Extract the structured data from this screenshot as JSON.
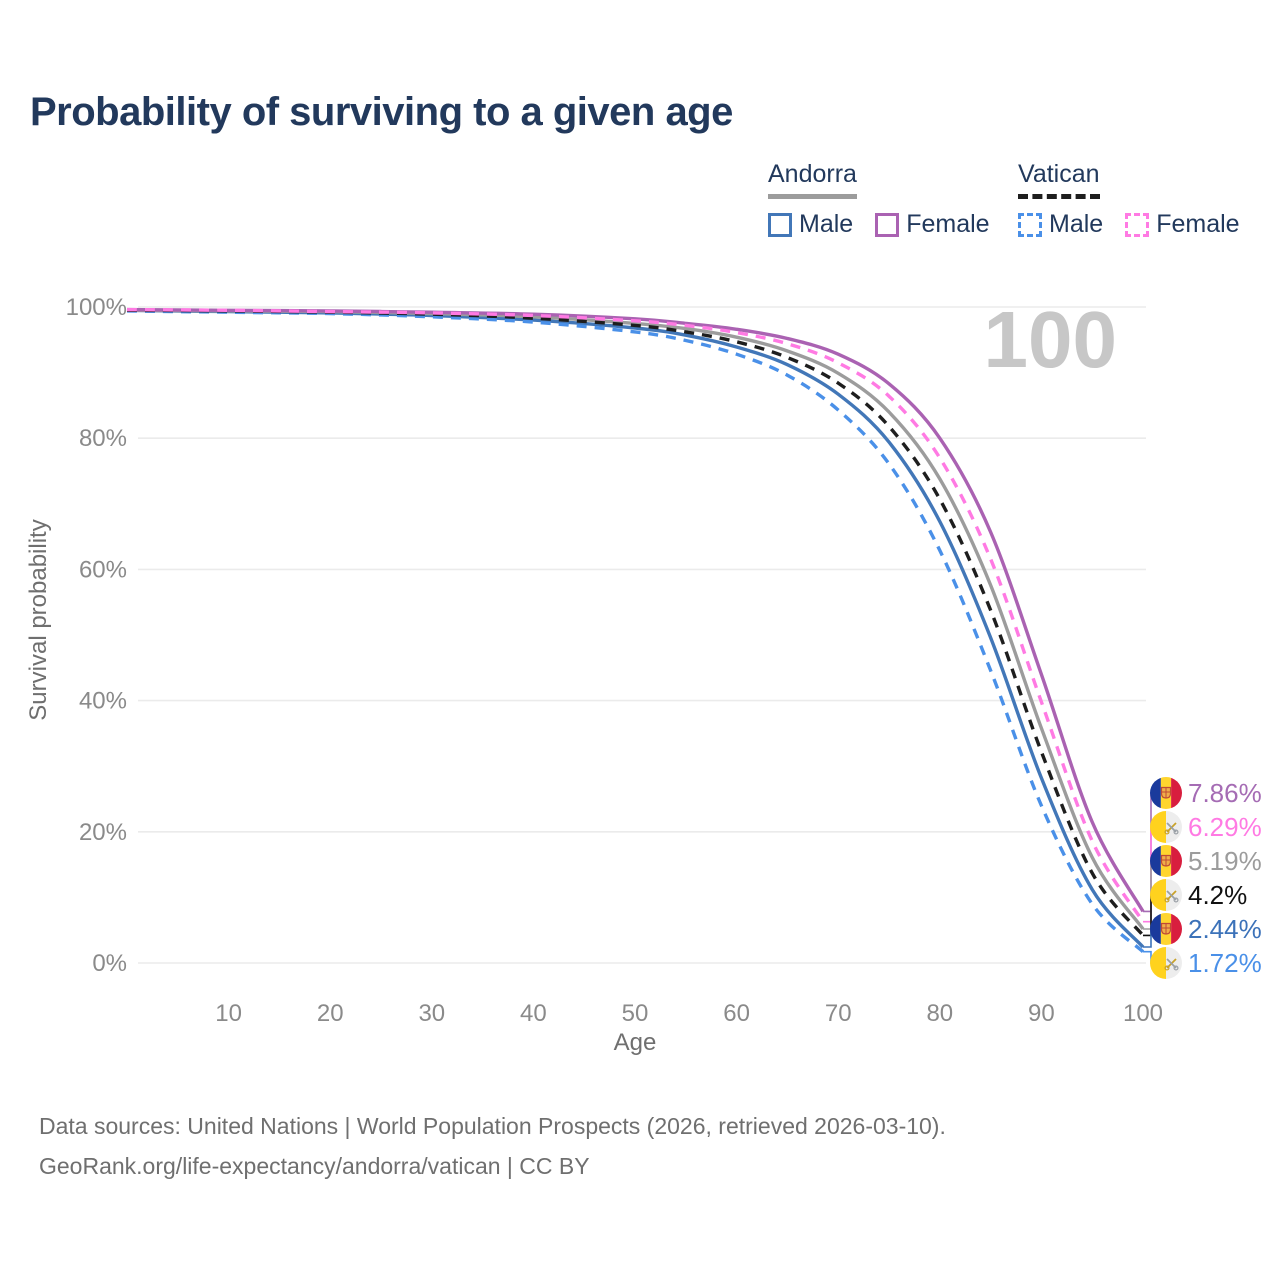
{
  "title": "Probability of surviving to a given age",
  "watermark": "100",
  "legend": {
    "groups": [
      {
        "id": "andorra",
        "label": "Andorra",
        "line": {
          "style": "solid",
          "color": "#9c9c9c"
        },
        "items": [
          {
            "id": "andorra-male",
            "label": "Male",
            "color": "#4277b8",
            "dashed": false
          },
          {
            "id": "andorra-female",
            "label": "Female",
            "color": "#aa62b2",
            "dashed": false
          }
        ]
      },
      {
        "id": "vatican",
        "label": "Vatican",
        "line": {
          "style": "dashed",
          "color": "#1e1e1e"
        },
        "items": [
          {
            "id": "vatican-male",
            "label": "Male",
            "color": "#4a90e8",
            "dashed": true
          },
          {
            "id": "vatican-female",
            "label": "Female",
            "color": "#ff7ae3",
            "dashed": true
          }
        ]
      }
    ]
  },
  "chart_data": {
    "type": "line",
    "title": "Probability of surviving to a given age",
    "xlabel": "Age",
    "ylabel": "Survival probability",
    "xlim": [
      0,
      100
    ],
    "ylim": [
      0,
      100
    ],
    "grid": "horizontal",
    "legend_position": "top-right",
    "x_ticks": [
      10,
      20,
      30,
      40,
      50,
      60,
      70,
      80,
      90,
      100
    ],
    "y_ticks": [
      {
        "value": 0,
        "label": "0%"
      },
      {
        "value": 20,
        "label": "20%"
      },
      {
        "value": 40,
        "label": "40%"
      },
      {
        "value": 60,
        "label": "60%"
      },
      {
        "value": 80,
        "label": "80%"
      },
      {
        "value": 100,
        "label": "100%"
      }
    ],
    "x": [
      0,
      10,
      20,
      30,
      40,
      50,
      55,
      60,
      65,
      70,
      75,
      80,
      85,
      90,
      95,
      100
    ],
    "series": [
      {
        "id": "andorra-male",
        "name": "Andorra Male",
        "country": "Andorra",
        "sex": "Male",
        "color": "#4277b8",
        "dashed": false,
        "values": [
          99.5,
          99.3,
          99.1,
          98.7,
          98.0,
          96.8,
          95.7,
          93.9,
          91.2,
          86.7,
          79.4,
          67.3,
          49.6,
          28.2,
          11.2,
          2.44
        ]
      },
      {
        "id": "andorra-total",
        "name": "Andorra",
        "country": "Andorra",
        "sex": "Both",
        "color": "#9c9c9c",
        "dashed": false,
        "values": [
          99.5,
          99.4,
          99.3,
          99.0,
          98.5,
          97.5,
          96.7,
          95.4,
          93.3,
          89.9,
          84.0,
          73.8,
          57.6,
          35.8,
          16.1,
          5.19
        ]
      },
      {
        "id": "andorra-female",
        "name": "Andorra Female",
        "country": "Andorra",
        "sex": "Female",
        "color": "#aa62b2",
        "dashed": false,
        "values": [
          99.6,
          99.5,
          99.4,
          99.2,
          98.9,
          98.2,
          97.5,
          96.6,
          95.2,
          92.8,
          88.3,
          80.0,
          65.7,
          44.0,
          21.5,
          7.86
        ]
      },
      {
        "id": "vatican-male",
        "name": "Vatican Male",
        "country": "Vatican",
        "sex": "Male",
        "color": "#4a90e8",
        "dashed": true,
        "values": [
          99.4,
          99.2,
          99.0,
          98.5,
          97.7,
          96.2,
          94.9,
          92.8,
          89.6,
          84.3,
          76.1,
          62.9,
          44.6,
          24.0,
          9.0,
          1.72
        ]
      },
      {
        "id": "vatican-total",
        "name": "Vatican",
        "country": "Vatican",
        "sex": "Both",
        "color": "#1e1e1e",
        "dashed": true,
        "values": [
          99.5,
          99.4,
          99.2,
          98.9,
          98.3,
          97.2,
          96.2,
          94.7,
          92.3,
          88.4,
          81.8,
          70.7,
          53.8,
          32.2,
          13.7,
          4.2
        ]
      },
      {
        "id": "vatican-female",
        "name": "Vatican Female",
        "country": "Vatican",
        "sex": "Female",
        "color": "#ff7ae3",
        "dashed": true,
        "values": [
          99.6,
          99.5,
          99.3,
          99.1,
          98.7,
          97.9,
          97.2,
          96.1,
          94.4,
          91.5,
          86.4,
          77.0,
          61.6,
          39.8,
          18.6,
          6.29
        ]
      }
    ],
    "end_labels": [
      {
        "series": "andorra-female",
        "text": "7.86%",
        "value": 7.86,
        "flag": "andorra",
        "color": "#a56cb4"
      },
      {
        "series": "vatican-female",
        "text": "6.29%",
        "value": 6.29,
        "flag": "vatican",
        "color": "#ff7ae3"
      },
      {
        "series": "andorra-total",
        "text": "5.19%",
        "value": 5.19,
        "flag": "andorra",
        "color": "#9c9c9c"
      },
      {
        "series": "vatican-total",
        "text": "4.2%",
        "value": 4.2,
        "flag": "vatican",
        "color": "#111111"
      },
      {
        "series": "andorra-male",
        "text": "2.44%",
        "value": 2.44,
        "flag": "andorra",
        "color": "#3c72b9"
      },
      {
        "series": "vatican-male",
        "text": "1.72%",
        "value": 1.72,
        "flag": "vatican",
        "color": "#4a90e8"
      }
    ]
  },
  "footer": {
    "line1": "Data sources: United Nations | World Population Prospects (2026, retrieved 2026-03-10).",
    "line2": "GeoRank.org/life-expectancy/andorra/vatican | CC BY"
  },
  "colors": {
    "title_text": "#22395c",
    "legend_text": "#22395c",
    "axis_text": "#8a8a8a",
    "axis_title_text": "#6f6f6f",
    "grid": "#ebebeb",
    "watermark": "#c7c7c7",
    "footer_text": "#6f6f6f",
    "flag_andorra": [
      "#1a3a9c",
      "#ffd52e",
      "#d81e3e"
    ],
    "flag_vatican": [
      "#ffd21e",
      "#ededed"
    ]
  }
}
